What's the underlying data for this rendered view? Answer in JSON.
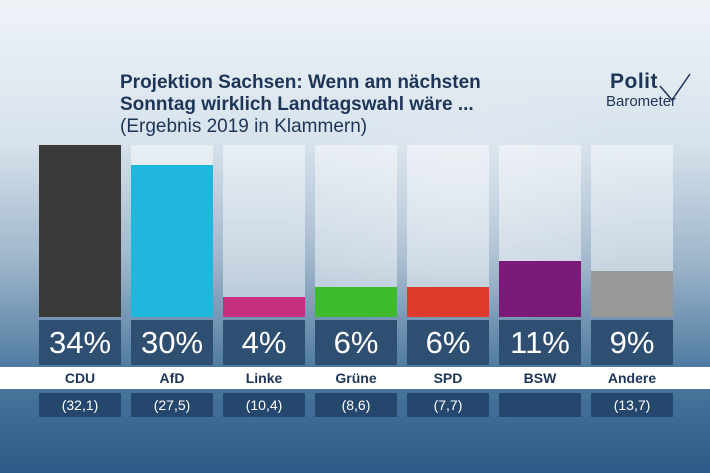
{
  "title": {
    "line1": "Projektion Sachsen: Wenn am nächsten",
    "line2": "Sonntag wirklich Landtagswahl wäre ...",
    "subtitle": "(Ergebnis 2019 in Klammern)"
  },
  "logo": {
    "line1": "Polit",
    "line2": "Barometer"
  },
  "colors": {
    "CDU": "#3a3a3a",
    "AfD": "#1fb8dc",
    "Linke": "#c4307f",
    "Grüne": "#3dbb2c",
    "SPD": "#dc3a2a",
    "BSW": "#7b1a78",
    "Andere": "#999999"
  },
  "chart_data": {
    "type": "bar",
    "categories": [
      "CDU",
      "AfD",
      "Linke",
      "Grüne",
      "SPD",
      "BSW",
      "Andere"
    ],
    "values": [
      34,
      30,
      4,
      6,
      6,
      11,
      9
    ],
    "value_labels": [
      "34%",
      "30%",
      "4%",
      "6%",
      "6%",
      "11%",
      "9%"
    ],
    "previous": [
      "(32,1)",
      "(27,5)",
      "(10,4)",
      "(8,6)",
      "(7,7)",
      "",
      "(13,7)"
    ],
    "title": "Projektion Sachsen: Wenn am nächsten Sonntag wirklich Landtagswahl wäre ...",
    "subtitle": "(Ergebnis 2019 in Klammern)",
    "ylim": [
      0,
      34
    ]
  }
}
